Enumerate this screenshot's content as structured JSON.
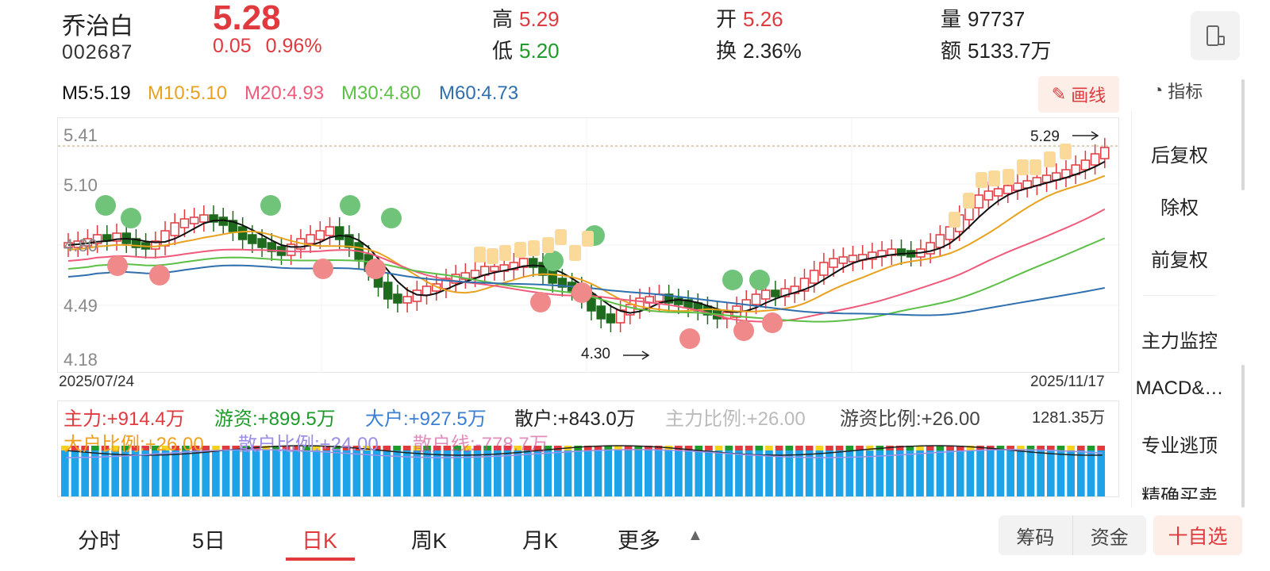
{
  "stock": {
    "name": "乔治白",
    "code": "002687",
    "price": "5.28",
    "change": "0.05",
    "change_pct": "0.96%"
  },
  "quote": {
    "high_label": "高",
    "high": "5.29",
    "low_label": "低",
    "low": "5.20",
    "open_label": "开",
    "open": "5.26",
    "turnover_label": "换",
    "turnover": "2.36%",
    "volume_label": "量",
    "volume": "97737",
    "amount_label": "额",
    "amount": "5133.7万"
  },
  "ma": [
    {
      "label": "M5:5.19",
      "color": "#111111"
    },
    {
      "label": "M10:5.10",
      "color": "#e8a21f"
    },
    {
      "label": "M20:4.93",
      "color": "#ef5a7a"
    },
    {
      "label": "M30:4.80",
      "color": "#5cbf46"
    },
    {
      "label": "M60:4.73",
      "color": "#2f6fae"
    }
  ],
  "toolbar": {
    "draw_label": "画线",
    "indicator_label": "指标"
  },
  "chart": {
    "y_labels": [
      "5.41",
      "5.10",
      "4.80",
      "4.49",
      "4.18"
    ],
    "start_date": "2025/07/24",
    "end_date": "2025/11/17",
    "high_mark": "5.29",
    "low_mark": "4.30",
    "up_color": "#e0393e",
    "down_color": "#1e6b1e"
  },
  "side_menu": {
    "items": [
      "后复权",
      "除权",
      "前复权",
      "主力监控",
      "MACD&…",
      "专业逃顶",
      "精确买卖"
    ]
  },
  "fund_flow": {
    "main": "主力:+914.4万",
    "hot": "游资:+899.5万",
    "large": "大户:+927.5万",
    "retail": "散户:+843.0万",
    "main_ratio": "主力比例:+26.00",
    "hot_ratio": "游资比例:+26.00",
    "large_ratio": "大户比例:+26.00",
    "retail_ratio": "散户比例:+24.00",
    "other": "散户线:-778.7万",
    "right_value": "1281.35万"
  },
  "tabs": {
    "items": [
      "分时",
      "5日",
      "日K",
      "周K",
      "月K",
      "更多"
    ],
    "active": "日K"
  },
  "bottom_buttons": {
    "chips": "筹码",
    "funds": "资金",
    "add_watchlist": "十自选"
  }
}
